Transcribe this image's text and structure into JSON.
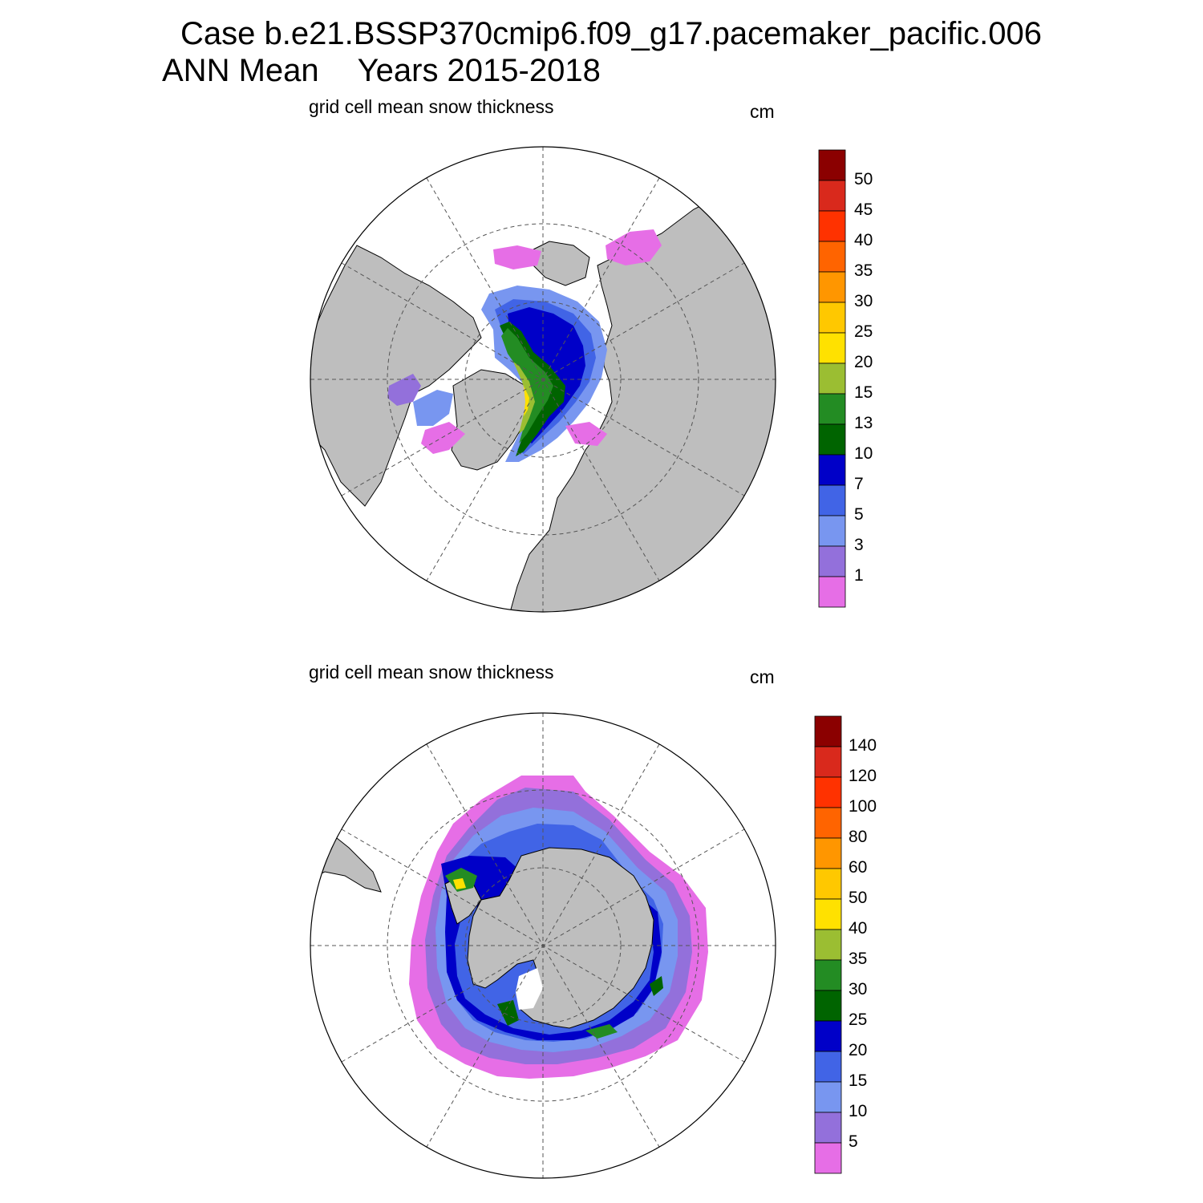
{
  "header": {
    "case_line": "Case b.e21.BSSP370cmip6.f09_g17.pacemaker_pacific.006",
    "season": "ANN Mean",
    "years": "Years 2015-2018"
  },
  "panels": [
    {
      "id": "nh",
      "title": "grid cell mean snow thickness",
      "unit": "cm",
      "hemisphere": "north",
      "colorbar_labels": [
        "50",
        "45",
        "40",
        "35",
        "30",
        "25",
        "20",
        "15",
        "13",
        "10",
        "7",
        "5",
        "3",
        "1"
      ]
    },
    {
      "id": "sh",
      "title": "grid cell mean snow thickness",
      "unit": "cm",
      "hemisphere": "south",
      "colorbar_labels": [
        "140",
        "120",
        "100",
        "80",
        "60",
        "50",
        "40",
        "35",
        "30",
        "25",
        "20",
        "15",
        "10",
        "5"
      ]
    }
  ],
  "colors": {
    "levels": [
      "#8b0000",
      "#d9291c",
      "#ff3200",
      "#ff6400",
      "#ff9600",
      "#ffc800",
      "#ffe100",
      "#9bbe32",
      "#238c23",
      "#006400",
      "#0000c8",
      "#4164e6",
      "#7896f0",
      "#9370db",
      "#e66ee6"
    ],
    "land": "#bebebe",
    "ocean": "#ffffff"
  }
}
